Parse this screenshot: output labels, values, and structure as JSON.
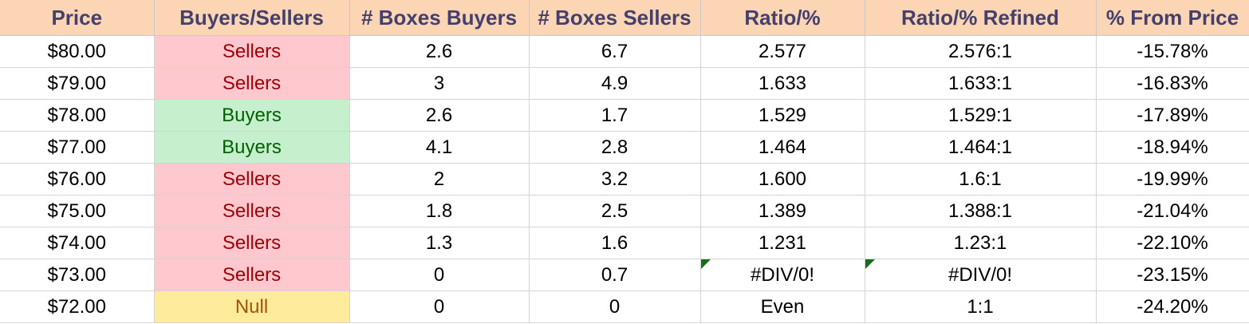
{
  "colors": {
    "header_bg": "#fcd5b4",
    "header_fg": "#44406e",
    "sellers_bg": "#ffc7ce",
    "sellers_fg": "#9c0006",
    "buyers_bg": "#c6efce",
    "buyers_fg": "#006100",
    "null_bg": "#ffeb9c",
    "null_fg": "#9c5700",
    "error_flag": "#1a6b1a"
  },
  "table": {
    "headers": [
      "Price",
      "Buyers/Sellers",
      "# Boxes Buyers",
      "# Boxes Sellers",
      "Ratio/%",
      "Ratio/% Refined",
      "% From Price"
    ],
    "rows": [
      {
        "price": "$80.00",
        "side": "Sellers",
        "side_type": "sellers",
        "boxes_buyers": "2.6",
        "boxes_sellers": "6.7",
        "ratio": "2.577",
        "ratio_refined": "2.576:1",
        "from_price": "-15.78%",
        "error_flag": false
      },
      {
        "price": "$79.00",
        "side": "Sellers",
        "side_type": "sellers",
        "boxes_buyers": "3",
        "boxes_sellers": "4.9",
        "ratio": "1.633",
        "ratio_refined": "1.633:1",
        "from_price": "-16.83%",
        "error_flag": false
      },
      {
        "price": "$78.00",
        "side": "Buyers",
        "side_type": "buyers",
        "boxes_buyers": "2.6",
        "boxes_sellers": "1.7",
        "ratio": "1.529",
        "ratio_refined": "1.529:1",
        "from_price": "-17.89%",
        "error_flag": false
      },
      {
        "price": "$77.00",
        "side": "Buyers",
        "side_type": "buyers",
        "boxes_buyers": "4.1",
        "boxes_sellers": "2.8",
        "ratio": "1.464",
        "ratio_refined": "1.464:1",
        "from_price": "-18.94%",
        "error_flag": false
      },
      {
        "price": "$76.00",
        "side": "Sellers",
        "side_type": "sellers",
        "boxes_buyers": "2",
        "boxes_sellers": "3.2",
        "ratio": "1.600",
        "ratio_refined": "1.6:1",
        "from_price": "-19.99%",
        "error_flag": false
      },
      {
        "price": "$75.00",
        "side": "Sellers",
        "side_type": "sellers",
        "boxes_buyers": "1.8",
        "boxes_sellers": "2.5",
        "ratio": "1.389",
        "ratio_refined": "1.388:1",
        "from_price": "-21.04%",
        "error_flag": false
      },
      {
        "price": "$74.00",
        "side": "Sellers",
        "side_type": "sellers",
        "boxes_buyers": "1.3",
        "boxes_sellers": "1.6",
        "ratio": "1.231",
        "ratio_refined": "1.23:1",
        "from_price": "-22.10%",
        "error_flag": false
      },
      {
        "price": "$73.00",
        "side": "Sellers",
        "side_type": "sellers",
        "boxes_buyers": "0",
        "boxes_sellers": "0.7",
        "ratio": "#DIV/0!",
        "ratio_refined": "#DIV/0!",
        "from_price": "-23.15%",
        "error_flag": true
      },
      {
        "price": "$72.00",
        "side": "Null",
        "side_type": "null",
        "boxes_buyers": "0",
        "boxes_sellers": "0",
        "ratio": "Even",
        "ratio_refined": "1:1",
        "from_price": "-24.20%",
        "error_flag": false
      }
    ]
  }
}
